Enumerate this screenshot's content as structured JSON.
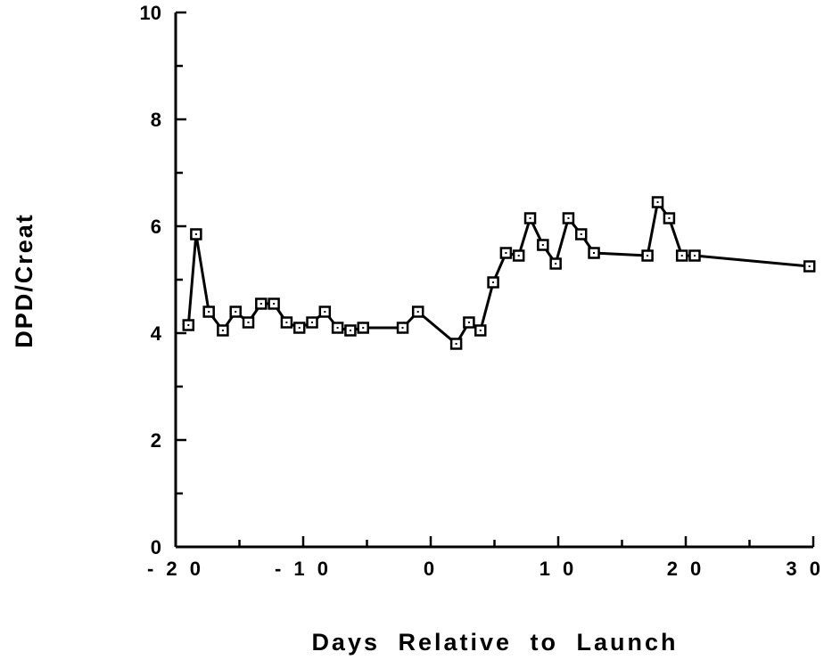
{
  "chart_data": {
    "type": "line",
    "title": "",
    "xlabel": "Days Relative to Launch",
    "ylabel": "DPD/Creat",
    "xlim": [
      -20,
      30
    ],
    "ylim": [
      0,
      10
    ],
    "x_ticks": [
      -20,
      -10,
      0,
      10,
      20,
      30
    ],
    "x_tick_labels": [
      "- 2 0",
      "- 1 0",
      "0",
      "1 0",
      "2 0",
      "3 0"
    ],
    "y_ticks": [
      0,
      2,
      4,
      6,
      8,
      10
    ],
    "y_tick_labels": [
      "0",
      "2",
      "4",
      "6",
      "8",
      "10"
    ],
    "grid": false,
    "marker": "open-square",
    "line_color": "#000000",
    "x": [
      -19,
      -18.4,
      -17.4,
      -16.3,
      -15.3,
      -14.3,
      -13.3,
      -12.3,
      -11.3,
      -10.3,
      -9.3,
      -8.3,
      -7.3,
      -6.3,
      -5.3,
      -2.2,
      -1.0,
      2.0,
      3.0,
      3.9,
      4.9,
      5.9,
      6.9,
      7.8,
      8.8,
      9.8,
      10.8,
      11.8,
      12.8,
      17.0,
      17.8,
      18.7,
      19.7,
      20.7,
      29.7
    ],
    "y": [
      4.15,
      5.85,
      4.4,
      4.05,
      4.4,
      4.2,
      4.55,
      4.55,
      4.2,
      4.1,
      4.2,
      4.4,
      4.1,
      4.05,
      4.1,
      4.1,
      4.4,
      3.8,
      4.2,
      4.05,
      4.95,
      5.5,
      5.45,
      6.15,
      5.65,
      5.3,
      6.15,
      5.85,
      5.5,
      5.45,
      6.45,
      6.15,
      5.45,
      5.45,
      5.25
    ]
  }
}
